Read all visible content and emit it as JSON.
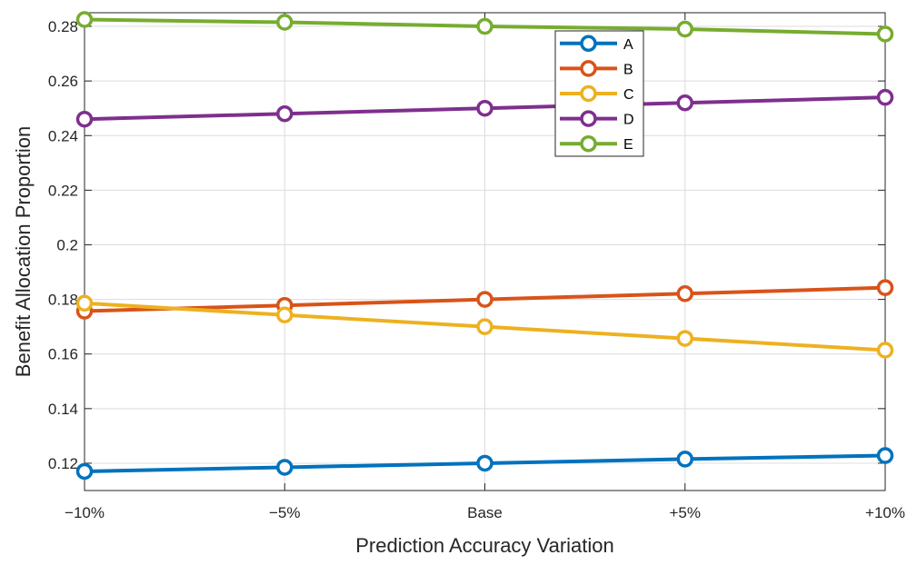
{
  "chart_data": {
    "type": "line",
    "title": "",
    "xlabel": "Prediction Accuracy Variation",
    "ylabel": "Benefit Allocation Proportion",
    "categories": [
      "−10%",
      "−5%",
      "Base",
      "+5%",
      "+10%"
    ],
    "ylim": [
      0.11,
      0.285
    ],
    "yticks": [
      0.12,
      0.14,
      0.16,
      0.18,
      0.2,
      0.22,
      0.24,
      0.26,
      0.28
    ],
    "ytick_labels": [
      "0.12",
      "0.14",
      "0.16",
      "0.18",
      "0.2",
      "0.22",
      "0.24",
      "0.26",
      "0.28"
    ],
    "grid": true,
    "legend_position": "top-center",
    "marker": "circle",
    "series": [
      {
        "name": "A",
        "color": "#0072BD",
        "values": [
          0.117,
          0.1185,
          0.12,
          0.1215,
          0.1228
        ]
      },
      {
        "name": "B",
        "color": "#D95319",
        "values": [
          0.1757,
          0.1778,
          0.18,
          0.1821,
          0.1843
        ]
      },
      {
        "name": "C",
        "color": "#EDB120",
        "values": [
          0.1786,
          0.1743,
          0.17,
          0.1657,
          0.1614
        ]
      },
      {
        "name": "D",
        "color": "#7E2F8E",
        "values": [
          0.246,
          0.248,
          0.25,
          0.252,
          0.254
        ]
      },
      {
        "name": "E",
        "color": "#77AC30",
        "values": [
          0.2825,
          0.2815,
          0.28,
          0.279,
          0.2772
        ]
      }
    ]
  }
}
